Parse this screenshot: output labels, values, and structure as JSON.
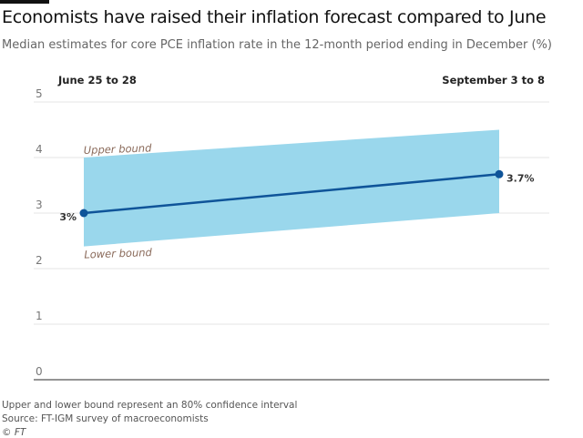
{
  "title": "Economists have raised their inflation forecast compared to June",
  "subtitle": "Median estimates for core PCE inflation rate in the 12-month period ending in December (%)",
  "footer": {
    "note": "Upper and lower bound represent an 80% confidence interval",
    "source": "Source: FT-IGM survey of macroeconomists",
    "copyright": "© FT"
  },
  "chart_data": {
    "type": "line",
    "categories": [
      "June 25 to 28",
      "September 3 to 8"
    ],
    "series": [
      {
        "values": [
          3.0,
          3.7
        ],
        "data_labels": [
          "3%",
          "3.7%"
        ],
        "color": "#0f5499"
      }
    ],
    "band": {
      "upper": [
        4.0,
        4.5
      ],
      "lower": [
        2.4,
        3.0
      ],
      "upper_label": "Upper bound",
      "lower_label": "Lower bound",
      "color": "#9ad7ec"
    },
    "ylim": [
      0,
      5
    ],
    "yticks": [
      "0",
      "1",
      "2",
      "3",
      "4",
      "5"
    ],
    "grid": true,
    "label_color": "#8a6a5a"
  }
}
